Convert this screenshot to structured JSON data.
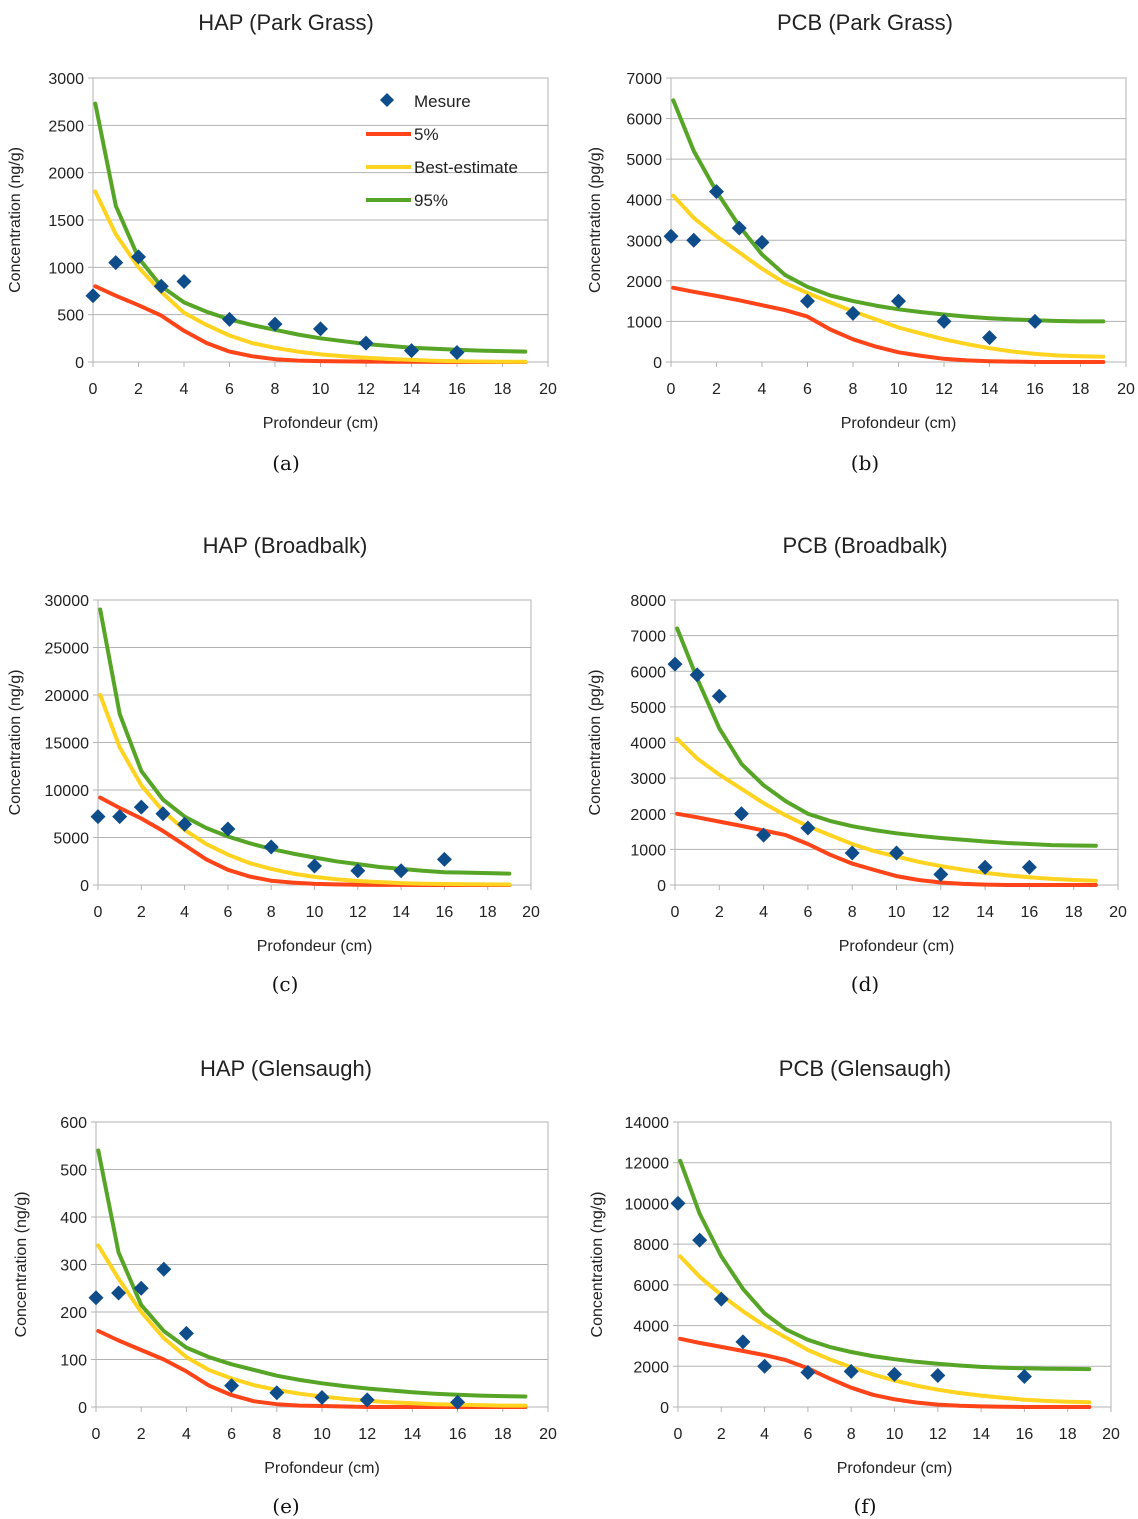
{
  "colors": {
    "mesure": "#0f4c8a",
    "p5": "#ff4419",
    "best": "#ffd320",
    "p95": "#57a527"
  },
  "chart_data": [
    {
      "type": "scatter+line",
      "panel": "a",
      "caption": "(a)",
      "title": "HAP (Park Grass)",
      "xlabel": "Profondeur (cm)",
      "ylabel": "Concentration (ng/g)",
      "xlim": [
        0,
        20
      ],
      "xstep": 2,
      "ylim": [
        0,
        3000
      ],
      "ystep": 500,
      "grid": true,
      "legend": {
        "placement": "top-right",
        "entries": [
          "Mesure",
          "5%",
          "Best-estimate",
          "95%"
        ]
      },
      "mesure": {
        "x": [
          0,
          1,
          2,
          3,
          4,
          6,
          8,
          10,
          12,
          14,
          16
        ],
        "y": [
          700,
          1050,
          1110,
          800,
          850,
          450,
          400,
          350,
          200,
          120,
          100
        ]
      },
      "curves": {
        "x": [
          0.1,
          1,
          2,
          3,
          4,
          5,
          6,
          7,
          8,
          9,
          10,
          11,
          12,
          13,
          14,
          15,
          16,
          17,
          18,
          19
        ],
        "p5": [
          800,
          700,
          600,
          490,
          330,
          200,
          110,
          60,
          30,
          15,
          10,
          6,
          4,
          3,
          2,
          1,
          0,
          0,
          0,
          0
        ],
        "best": [
          1800,
          1350,
          1000,
          740,
          520,
          390,
          280,
          200,
          150,
          110,
          80,
          60,
          45,
          32,
          22,
          14,
          8,
          5,
          3,
          2
        ],
        "p95": [
          2730,
          1650,
          1100,
          800,
          630,
          530,
          450,
          390,
          340,
          290,
          250,
          220,
          190,
          170,
          150,
          140,
          130,
          120,
          115,
          110
        ]
      }
    },
    {
      "type": "scatter+line",
      "panel": "b",
      "caption": "(b)",
      "title": "PCB (Park Grass)",
      "xlabel": "Profondeur (cm)",
      "ylabel": "Concentration (pg/g)",
      "xlim": [
        0,
        20
      ],
      "xstep": 2,
      "ylim": [
        0,
        7000
      ],
      "ystep": 1000,
      "grid": true,
      "mesure": {
        "x": [
          0,
          1,
          2,
          3,
          4,
          6,
          8,
          10,
          12,
          14,
          16
        ],
        "y": [
          3100,
          3000,
          4200,
          3300,
          2950,
          1500,
          1200,
          1500,
          1000,
          600,
          1000
        ]
      },
      "curves": {
        "x": [
          0.1,
          1,
          2,
          3,
          4,
          5,
          6,
          7,
          8,
          9,
          10,
          11,
          12,
          13,
          14,
          15,
          16,
          17,
          18,
          19
        ],
        "p5": [
          1830,
          1730,
          1630,
          1520,
          1400,
          1280,
          1120,
          800,
          560,
          380,
          240,
          150,
          80,
          40,
          20,
          10,
          0,
          0,
          0,
          0
        ],
        "best": [
          4100,
          3550,
          3100,
          2700,
          2300,
          1950,
          1700,
          1470,
          1250,
          1050,
          850,
          700,
          560,
          440,
          340,
          260,
          200,
          160,
          140,
          130
        ],
        "p95": [
          6450,
          5200,
          4200,
          3350,
          2650,
          2150,
          1850,
          1640,
          1500,
          1390,
          1300,
          1230,
          1170,
          1120,
          1080,
          1050,
          1030,
          1010,
          1000,
          1000
        ]
      }
    },
    {
      "type": "scatter+line",
      "panel": "c",
      "caption": "(c)",
      "title": "HAP (Broadbalk)",
      "xlabel": "Profondeur (cm)",
      "ylabel": "Concentration (ng/g)",
      "xlim": [
        0,
        20
      ],
      "xstep": 2,
      "ylim": [
        0,
        30000
      ],
      "ystep": 5000,
      "grid": true,
      "mesure": {
        "x": [
          0,
          1,
          2,
          3,
          4,
          6,
          8,
          10,
          12,
          14,
          16
        ],
        "y": [
          7200,
          7200,
          8200,
          7500,
          6400,
          5900,
          4000,
          2000,
          1500,
          1500,
          2700
        ]
      },
      "curves": {
        "x": [
          0.1,
          1,
          2,
          3,
          4,
          5,
          6,
          7,
          8,
          9,
          10,
          11,
          12,
          13,
          14,
          15,
          16,
          17,
          18,
          19
        ],
        "p5": [
          9200,
          8100,
          7000,
          5700,
          4200,
          2700,
          1600,
          900,
          450,
          250,
          120,
          60,
          30,
          15,
          8,
          4,
          2,
          1,
          0,
          0
        ],
        "best": [
          20000,
          14500,
          10500,
          7800,
          5800,
          4300,
          3200,
          2300,
          1700,
          1200,
          850,
          600,
          420,
          300,
          200,
          140,
          100,
          80,
          60,
          50
        ],
        "p95": [
          29000,
          18000,
          12000,
          9000,
          7200,
          6000,
          5100,
          4400,
          3800,
          3300,
          2900,
          2500,
          2200,
          1900,
          1700,
          1500,
          1350,
          1300,
          1250,
          1200
        ]
      }
    },
    {
      "type": "scatter+line",
      "panel": "d",
      "caption": "(d)",
      "title": "PCB (Broadbalk)",
      "xlabel": "Profondeur (cm)",
      "ylabel": "Concentration (pg/g)",
      "xlim": [
        0,
        20
      ],
      "xstep": 2,
      "ylim": [
        0,
        8000
      ],
      "ystep": 1000,
      "grid": true,
      "mesure": {
        "x": [
          0,
          1,
          2,
          3,
          4,
          6,
          8,
          10,
          12,
          14,
          16
        ],
        "y": [
          6200,
          5900,
          5300,
          2000,
          1400,
          1600,
          900,
          900,
          300,
          500,
          500
        ]
      },
      "curves": {
        "x": [
          0.1,
          1,
          2,
          3,
          4,
          5,
          6,
          7,
          8,
          9,
          10,
          11,
          12,
          13,
          14,
          15,
          16,
          17,
          18,
          19
        ],
        "p5": [
          2000,
          1900,
          1780,
          1660,
          1530,
          1400,
          1150,
          850,
          600,
          420,
          250,
          140,
          70,
          30,
          10,
          0,
          0,
          0,
          0,
          0
        ],
        "best": [
          4100,
          3550,
          3100,
          2700,
          2300,
          1950,
          1650,
          1400,
          1150,
          950,
          800,
          650,
          530,
          430,
          340,
          270,
          220,
          170,
          140,
          120
        ],
        "p95": [
          7200,
          5800,
          4400,
          3400,
          2800,
          2350,
          2000,
          1800,
          1650,
          1540,
          1450,
          1380,
          1320,
          1270,
          1220,
          1180,
          1150,
          1120,
          1110,
          1100
        ]
      }
    },
    {
      "type": "scatter+line",
      "panel": "e",
      "caption": "(e)",
      "title": "HAP (Glensaugh)",
      "xlabel": "Profondeur (cm)",
      "ylabel": "Concentration (ng/g)",
      "xlim": [
        0,
        20
      ],
      "xstep": 2,
      "ylim": [
        0,
        600
      ],
      "ystep": 100,
      "grid": true,
      "mesure": {
        "x": [
          0,
          1,
          2,
          3,
          4,
          6,
          8,
          10,
          12,
          16
        ],
        "y": [
          230,
          240,
          250,
          290,
          155,
          45,
          30,
          20,
          15,
          10
        ]
      },
      "curves": {
        "x": [
          0.1,
          1,
          2,
          3,
          4,
          5,
          6,
          7,
          8,
          9,
          10,
          11,
          12,
          13,
          14,
          15,
          16,
          17,
          18,
          19
        ],
        "p5": [
          160,
          140,
          120,
          100,
          75,
          45,
          25,
          12,
          6,
          3,
          2,
          1,
          0,
          0,
          0,
          0,
          0,
          0,
          0,
          0
        ],
        "best": [
          340,
          270,
          200,
          145,
          105,
          78,
          60,
          46,
          36,
          28,
          22,
          17,
          13,
          10,
          8,
          6,
          5,
          4,
          3,
          3
        ],
        "p95": [
          540,
          325,
          215,
          160,
          125,
          105,
          90,
          78,
          66,
          57,
          50,
          44,
          39,
          35,
          31,
          28,
          26,
          24,
          23,
          22
        ]
      }
    },
    {
      "type": "scatter+line",
      "panel": "f",
      "caption": "(f)",
      "title": "PCB (Glensaugh)",
      "xlabel": "Profondeur (cm)",
      "ylabel": "Concentration (ng/g)",
      "xlim": [
        0,
        20
      ],
      "xstep": 2,
      "ylim": [
        0,
        14000
      ],
      "ystep": 2000,
      "grid": true,
      "mesure": {
        "x": [
          0,
          1,
          2,
          3,
          4,
          6,
          8,
          10,
          12,
          16
        ],
        "y": [
          10000,
          8200,
          5300,
          3200,
          2000,
          1700,
          1750,
          1600,
          1550,
          1500
        ]
      },
      "curves": {
        "x": [
          0.1,
          1,
          2,
          3,
          4,
          5,
          6,
          7,
          8,
          9,
          10,
          11,
          12,
          13,
          14,
          15,
          16,
          17,
          18,
          19
        ],
        "p5": [
          3350,
          3150,
          2950,
          2750,
          2550,
          2300,
          1900,
          1400,
          950,
          600,
          380,
          220,
          120,
          60,
          30,
          10,
          0,
          0,
          0,
          0
        ],
        "best": [
          7400,
          6400,
          5500,
          4700,
          4000,
          3400,
          2800,
          2350,
          1950,
          1600,
          1300,
          1050,
          850,
          690,
          560,
          450,
          360,
          300,
          260,
          230
        ],
        "p95": [
          12100,
          9500,
          7400,
          5800,
          4600,
          3800,
          3300,
          2950,
          2700,
          2500,
          2350,
          2220,
          2120,
          2040,
          1970,
          1930,
          1900,
          1880,
          1870,
          1860
        ]
      }
    }
  ]
}
